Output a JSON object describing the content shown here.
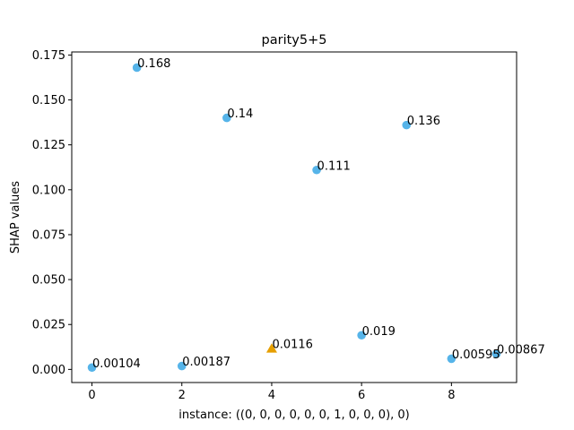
{
  "chart_data": {
    "type": "scatter",
    "title": "parity5+5",
    "xlabel": "instance: ((0, 0, 0, 0, 0, 0, 1, 0, 0, 0), 0)",
    "ylabel": "SHAP values",
    "xlim": [
      -0.45,
      9.45
    ],
    "ylim": [
      -0.0073,
      0.1767
    ],
    "xticks": [
      0,
      2,
      4,
      6,
      8
    ],
    "yticks": [
      0.0,
      0.025,
      0.05,
      0.075,
      0.1,
      0.125,
      0.15,
      0.175
    ],
    "xtick_labels": [
      "0",
      "2",
      "4",
      "6",
      "8"
    ],
    "ytick_labels": [
      "0.000",
      "0.025",
      "0.050",
      "0.075",
      "0.100",
      "0.125",
      "0.150",
      "0.175"
    ],
    "grid": false,
    "colors": {
      "circle": "#56B4E9",
      "triangle": "#E69F00"
    },
    "points": [
      {
        "x": 0,
        "y": 0.00104,
        "label": "0.00104",
        "marker": "circle"
      },
      {
        "x": 1,
        "y": 0.168,
        "label": "0.168",
        "marker": "circle"
      },
      {
        "x": 2,
        "y": 0.00187,
        "label": "0.00187",
        "marker": "circle"
      },
      {
        "x": 3,
        "y": 0.14,
        "label": "0.14",
        "marker": "circle"
      },
      {
        "x": 4,
        "y": 0.0116,
        "label": "0.0116",
        "marker": "triangle"
      },
      {
        "x": 5,
        "y": 0.111,
        "label": "0.111",
        "marker": "circle"
      },
      {
        "x": 6,
        "y": 0.019,
        "label": "0.019",
        "marker": "circle"
      },
      {
        "x": 7,
        "y": 0.136,
        "label": "0.136",
        "marker": "circle"
      },
      {
        "x": 8,
        "y": 0.00595,
        "label": "0.00595",
        "marker": "circle"
      },
      {
        "x": 9,
        "y": 0.00867,
        "label": "0.00867",
        "marker": "circle"
      }
    ]
  }
}
